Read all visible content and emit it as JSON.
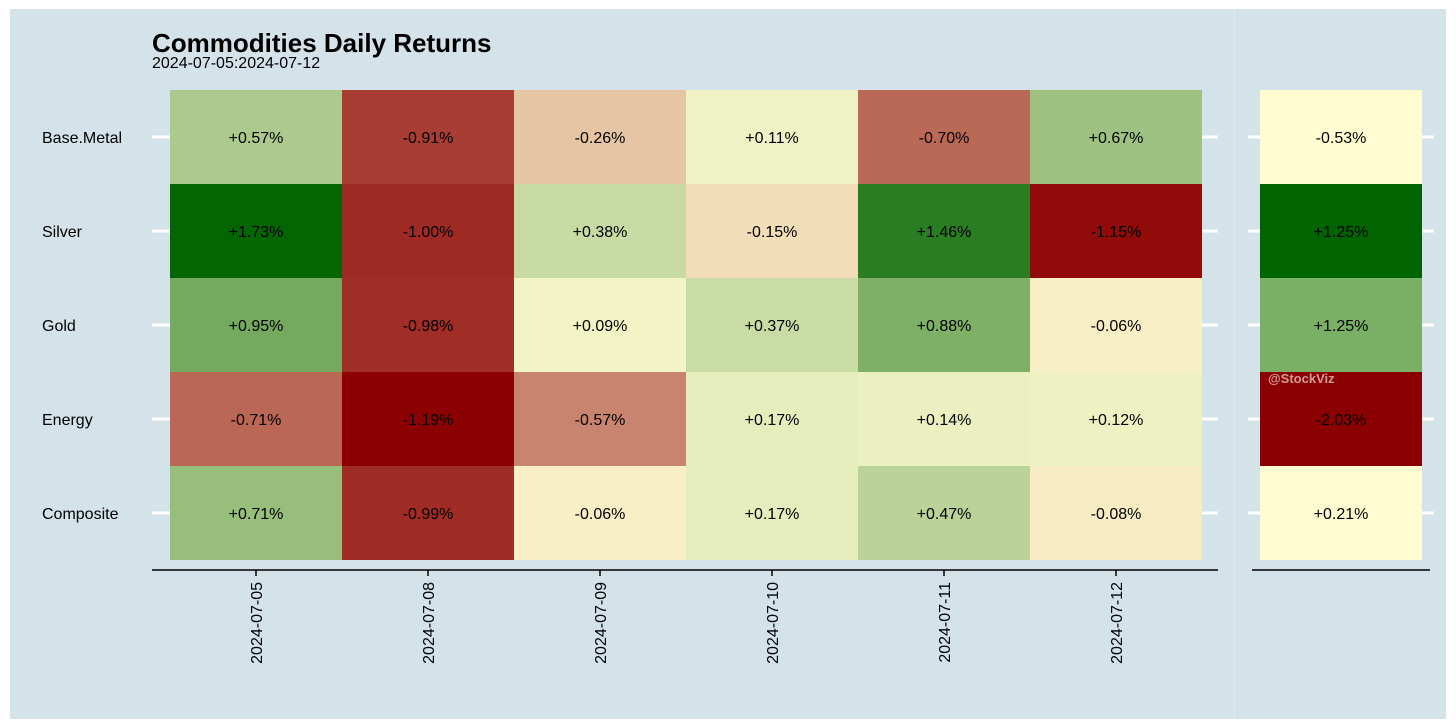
{
  "chart_data": {
    "type": "heatmap",
    "title": "Commodities Daily Returns",
    "subtitle": "2024-07-05:2024-07-12",
    "rows": [
      "Base.Metal",
      "Silver",
      "Gold",
      "Energy",
      "Composite"
    ],
    "columns": [
      "2024-07-05",
      "2024-07-08",
      "2024-07-09",
      "2024-07-10",
      "2024-07-11",
      "2024-07-12"
    ],
    "values": [
      [
        0.57,
        -0.91,
        -0.26,
        0.11,
        -0.7,
        0.67
      ],
      [
        1.73,
        -1.0,
        0.38,
        -0.15,
        1.46,
        -1.15
      ],
      [
        0.95,
        -0.98,
        0.09,
        0.37,
        0.88,
        -0.06
      ],
      [
        -0.71,
        -1.19,
        -0.57,
        0.17,
        0.14,
        0.12
      ],
      [
        0.71,
        -0.99,
        -0.06,
        0.17,
        0.47,
        -0.08
      ]
    ],
    "labels": [
      [
        "+0.57%",
        "-0.91%",
        "-0.26%",
        "+0.11%",
        "-0.70%",
        "+0.67%"
      ],
      [
        "+1.73%",
        "-1.00%",
        "+0.38%",
        "-0.15%",
        "+1.46%",
        "-1.15%"
      ],
      [
        "+0.95%",
        "-0.98%",
        "+0.09%",
        "+0.37%",
        "+0.88%",
        "-0.06%"
      ],
      [
        "-0.71%",
        "-1.19%",
        "-0.57%",
        "+0.17%",
        "+0.14%",
        "+0.12%"
      ],
      [
        "+0.71%",
        "-0.99%",
        "-0.06%",
        "+0.17%",
        "+0.47%",
        "-0.08%"
      ]
    ],
    "summary_values": [
      -0.53,
      1.25,
      1.25,
      -2.03,
      0.21
    ],
    "summary_labels": [
      "-0.53%",
      "+1.25%",
      "+1.25%",
      "-2.03%",
      "+0.21%"
    ],
    "summary_colors": [
      "#fffcd1",
      "#006400",
      "#7ab065",
      "#8b0000",
      "#fffcd1"
    ],
    "colors": {
      "background": "#d4e3ea",
      "positive": "#006400",
      "neutral": "#fffcd1",
      "negative": "#8b0000",
      "text": "#000000",
      "axis": "#000000",
      "gridline": "#ffffff"
    },
    "watermark": "@StockViz",
    "grid": true,
    "legend": "none"
  }
}
